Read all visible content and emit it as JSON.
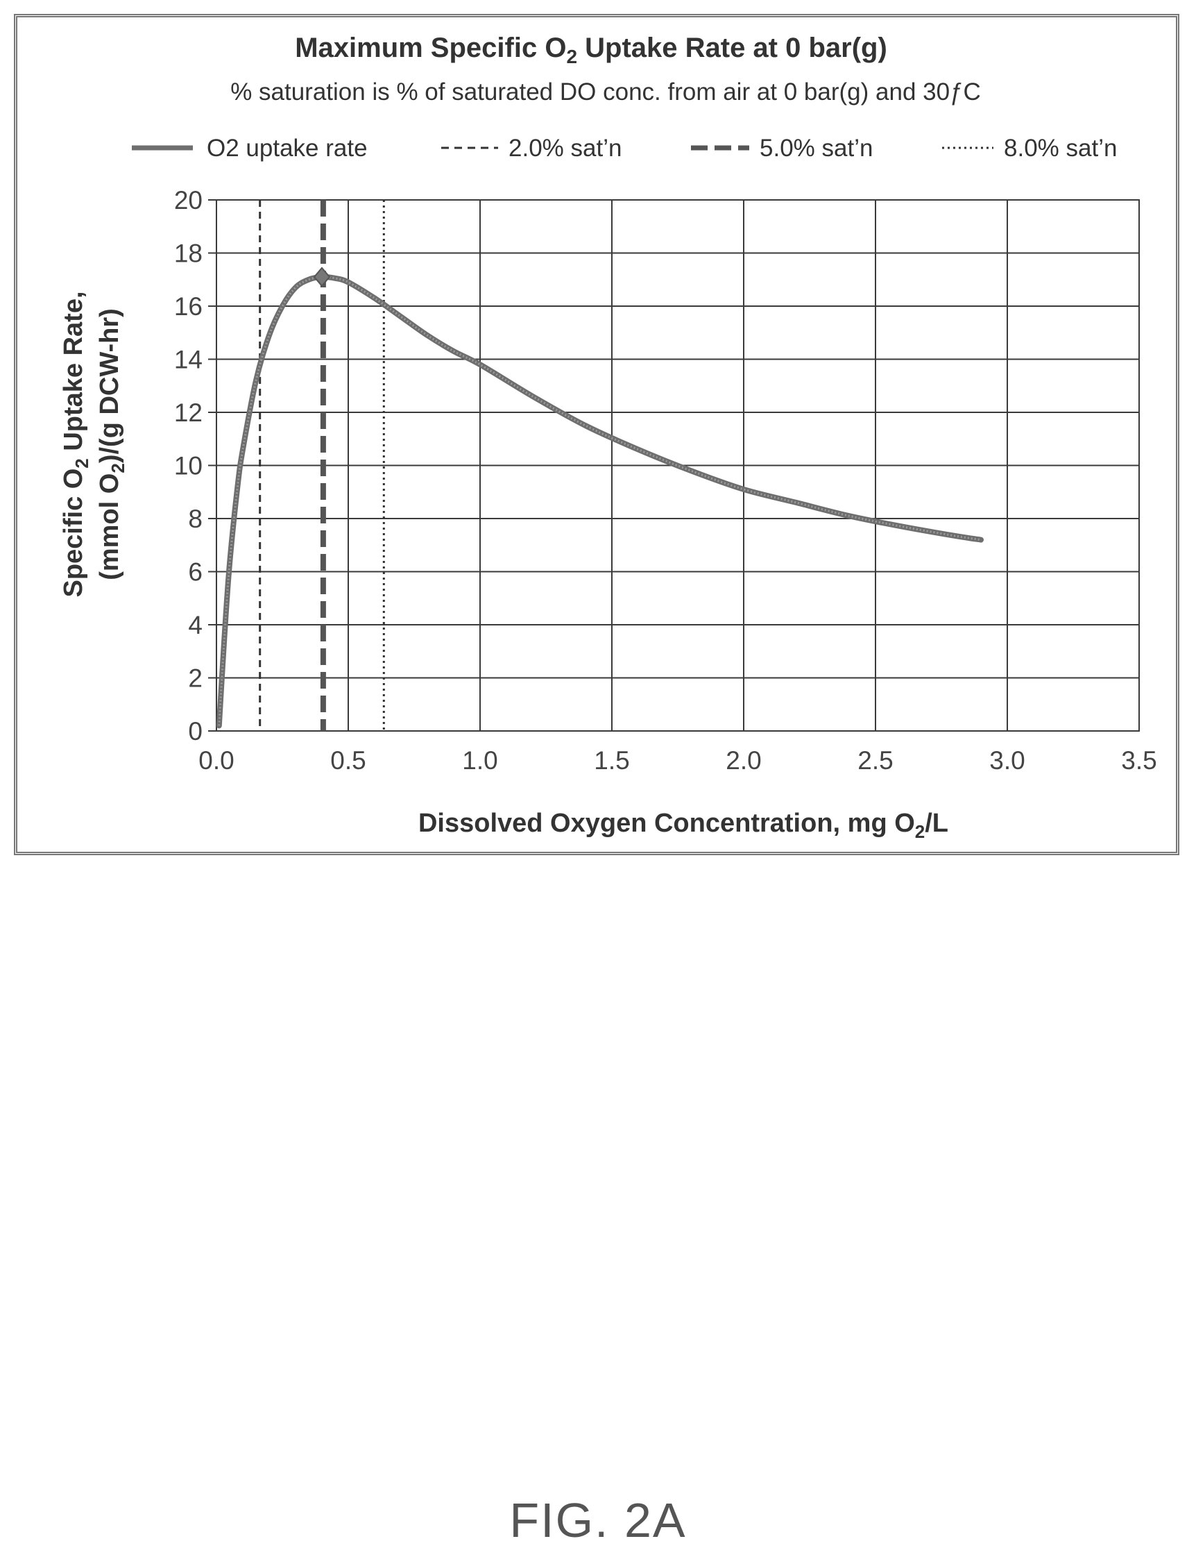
{
  "chart_data": {
    "type": "line",
    "title": "Maximum Specific O",
    "title_sub": "2",
    "title_rest": " Uptake Rate at 0 bar(g)",
    "subtitle": "% saturation is % of saturated DO conc. from air at 0 bar(g) and 30ƒC",
    "xlabel": "Dissolved Oxygen Concentration, mg O",
    "xlabel_sub": "2",
    "xlabel_rest": "/L",
    "ylabel_line1": "Specific O",
    "ylabel_line1_sub": "2",
    "ylabel_line1_rest": " Uptake Rate,",
    "ylabel_line2": "(mmol O",
    "ylabel_line2_sub": "2",
    "ylabel_line2_rest": ")/(g DCW-hr)",
    "xlim": [
      0,
      3.5
    ],
    "ylim": [
      0,
      20
    ],
    "xticks": [
      "0.0",
      "0.5",
      "1.0",
      "1.5",
      "2.0",
      "2.5",
      "3.0",
      "3.5"
    ],
    "yticks": [
      "0",
      "2",
      "4",
      "6",
      "8",
      "10",
      "12",
      "14",
      "16",
      "18",
      "20"
    ],
    "grid": true,
    "legend_position": "top",
    "series": [
      {
        "name": "O2 uptake rate",
        "style": "solid-thick",
        "x": [
          0.01,
          0.03,
          0.05,
          0.08,
          0.1,
          0.15,
          0.2,
          0.25,
          0.3,
          0.35,
          0.4,
          0.45,
          0.5,
          0.6,
          0.7,
          0.8,
          0.9,
          1.0,
          1.2,
          1.4,
          1.6,
          1.8,
          2.0,
          2.2,
          2.4,
          2.6,
          2.8,
          2.9
        ],
        "y": [
          0.2,
          3.5,
          6.3,
          9.2,
          10.6,
          13.2,
          14.9,
          16.0,
          16.7,
          17.0,
          17.1,
          17.05,
          16.9,
          16.3,
          15.6,
          14.9,
          14.3,
          13.8,
          12.6,
          11.5,
          10.6,
          9.8,
          9.1,
          8.6,
          8.1,
          7.7,
          7.35,
          7.2
        ]
      },
      {
        "name": "2.0% sat’n",
        "style": "dashed-thin",
        "x_value": 0.165
      },
      {
        "name": "5.0% sat’n",
        "style": "dashed-thick",
        "x_value": 0.405
      },
      {
        "name": "8.0% sat’n",
        "style": "dotted",
        "x_value": 0.635
      }
    ],
    "peak_marker": {
      "x": 0.4,
      "y": 17.1
    }
  },
  "figure_label": "FIG. 2A",
  "colors": {
    "curve": "#6e6e6e",
    "grid": "#3a3a3a",
    "text": "#333333"
  }
}
